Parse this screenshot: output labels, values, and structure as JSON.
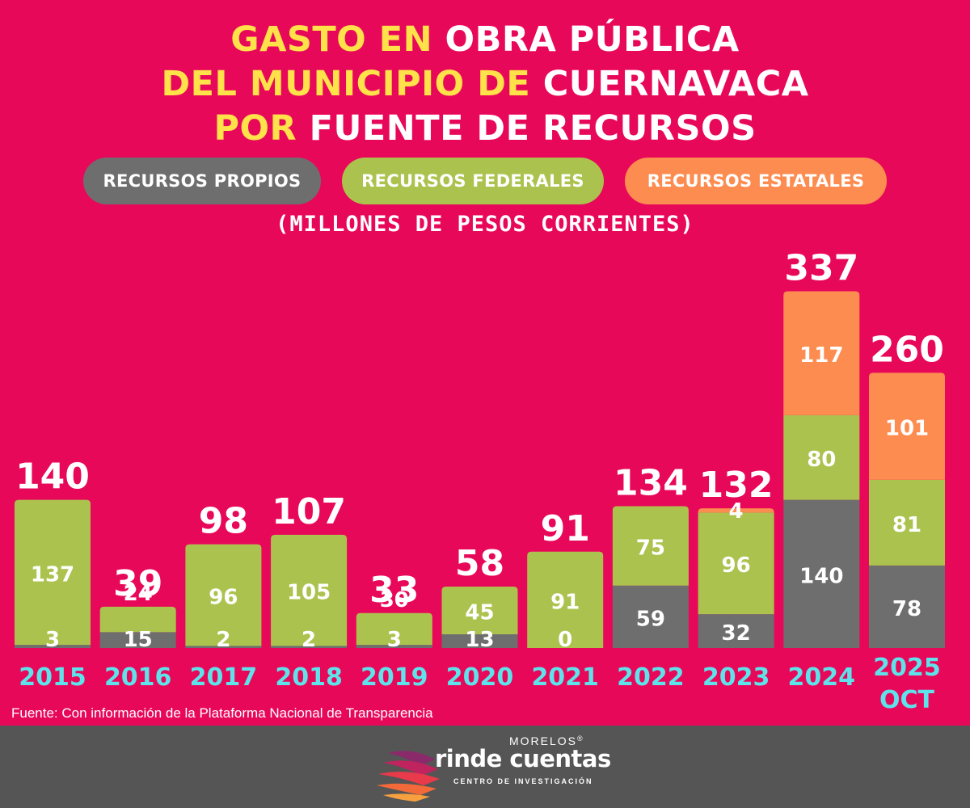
{
  "title": {
    "line1_a": "GASTO EN",
    "line1_b": "OBRA PÚBLICA",
    "line2_a": "DEL MUNICIPIO DE",
    "line2_b": "CUERNAVACA",
    "line3_a": "POR",
    "line3_b": "FUENTE DE RECURSOS"
  },
  "legend": [
    {
      "label": "RECURSOS PROPIOS",
      "color": "#6e6e6e"
    },
    {
      "label": "RECURSOS FEDERALES",
      "color": "#abc34e"
    },
    {
      "label": "RECURSOS ESTATALES",
      "color": "#fd8c50"
    }
  ],
  "subtitle": "(MILLONES DE PESOS CORRIENTES)",
  "source": "Fuente: Con información de la Plataforma Nacional de Transparencia",
  "logo": {
    "top": "MORELOS",
    "reg": "®",
    "main": "rinde cuentas",
    "sub": "CENTRO DE INVESTIGACIÓN"
  },
  "colors": {
    "background": "#e8085a",
    "propios": "#6e6e6e",
    "federales": "#abc34e",
    "estatales": "#fd8c50",
    "year_label": "#5ee3ea",
    "title_highlight": "#ffe14a",
    "footer": "#555555"
  },
  "chart_data": {
    "type": "bar",
    "stacked": true,
    "title": "GASTO EN OBRA PÚBLICA DEL MUNICIPIO DE CUERNAVACA POR FUENTE DE RECURSOS",
    "ylabel": "(MILLONES DE PESOS CORRIENTES)",
    "categories": [
      "2015",
      "2016",
      "2017",
      "2018",
      "2019",
      "2020",
      "2021",
      "2022",
      "2023",
      "2024",
      "2025 OCT"
    ],
    "series": [
      {
        "name": "RECURSOS PROPIOS",
        "values": [
          3,
          15,
          2,
          2,
          3,
          13,
          0,
          59,
          32,
          140,
          78
        ]
      },
      {
        "name": "RECURSOS FEDERALES",
        "values": [
          137,
          24,
          96,
          105,
          30,
          45,
          91,
          75,
          96,
          80,
          81
        ]
      },
      {
        "name": "RECURSOS ESTATALES",
        "values": [
          0,
          0,
          0,
          0,
          0,
          0,
          0,
          0,
          4,
          117,
          101
        ]
      }
    ],
    "totals": [
      140,
      39,
      98,
      107,
      33,
      58,
      91,
      134,
      132,
      337,
      260
    ],
    "ylim": [
      0,
      340
    ]
  }
}
